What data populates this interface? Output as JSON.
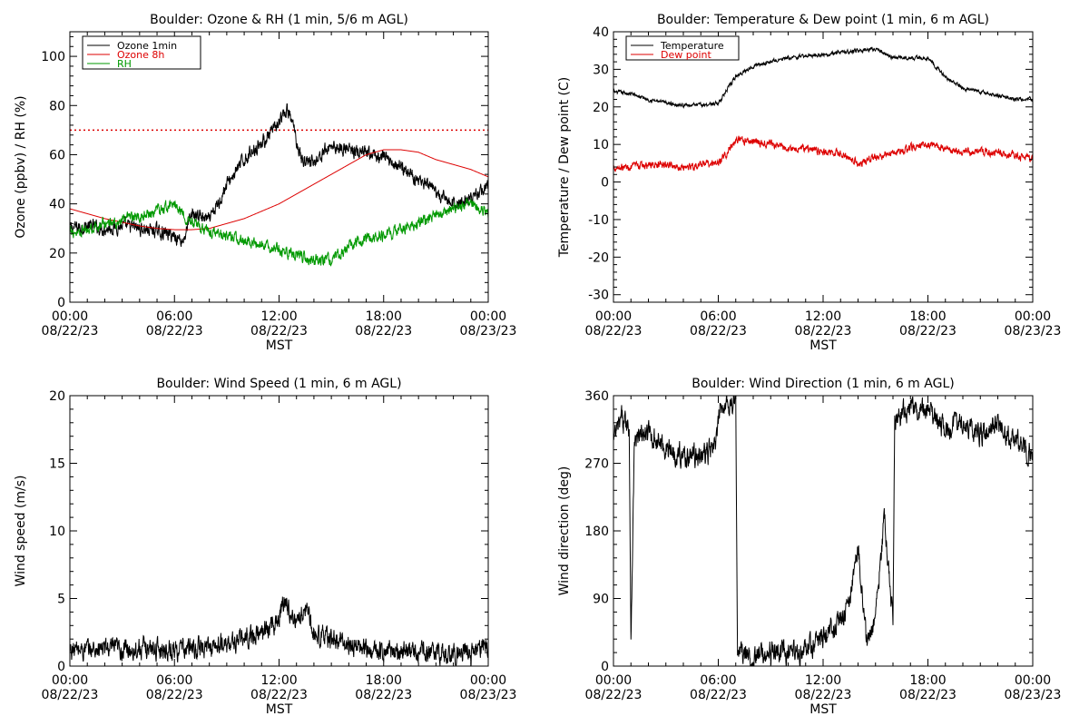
{
  "chart_data": [
    {
      "type": "line",
      "title": "Boulder: Ozone & RH (1 min, 5/6 m AGL)",
      "ylabel": "Ozone (ppbv) / RH (%)",
      "xlabel": "MST",
      "xlim": [
        0,
        24
      ],
      "ylim": [
        0,
        110
      ],
      "yticks": [
        0,
        20,
        40,
        60,
        80,
        100
      ],
      "xticks": [
        {
          "hour": 0,
          "time": "00:00",
          "date": "08/22/23"
        },
        {
          "hour": 6,
          "time": "06:00",
          "date": "08/22/23"
        },
        {
          "hour": 12,
          "time": "12:00",
          "date": "08/22/23"
        },
        {
          "hour": 18,
          "time": "18:00",
          "date": "08/22/23"
        },
        {
          "hour": 24,
          "time": "00:00",
          "date": "08/23/23"
        }
      ],
      "reference_line": {
        "y": 70,
        "color": "#dd0000",
        "style": "dotted"
      },
      "legend_position": "top-left",
      "series": [
        {
          "name": "Ozone 1min",
          "color": "#000000",
          "noise": 2.2,
          "x": [
            0,
            1,
            2,
            3,
            4,
            5,
            6,
            6.5,
            7,
            7.5,
            8,
            8.5,
            9,
            9.5,
            10,
            10.5,
            11,
            11.5,
            12,
            12.5,
            12.8,
            13,
            13.3,
            14,
            15,
            16,
            17,
            18,
            19,
            20,
            21,
            22,
            23,
            24
          ],
          "y": [
            30,
            31,
            30,
            31,
            30,
            29,
            27,
            25,
            36,
            35,
            33,
            40,
            48,
            53,
            58,
            62,
            65,
            68,
            73,
            78,
            72,
            66,
            58,
            57,
            64,
            62,
            60,
            59,
            55,
            50,
            44,
            40,
            42,
            48
          ]
        },
        {
          "name": "Ozone 8h",
          "color": "#dd0000",
          "noise": 0,
          "x": [
            0,
            1,
            2,
            3,
            4,
            5,
            6,
            7,
            8,
            9,
            10,
            11,
            12,
            13,
            14,
            15,
            16,
            17,
            18,
            19,
            20,
            21,
            22,
            23,
            24
          ],
          "y": [
            38,
            36,
            34,
            32.5,
            31,
            30,
            29.5,
            29.5,
            30,
            32,
            34,
            37,
            40,
            44,
            48,
            52,
            56,
            60,
            62,
            62,
            61,
            58,
            56,
            54,
            51
          ]
        },
        {
          "name": "RH",
          "color": "#009900",
          "noise": 1.8,
          "x": [
            0,
            1,
            2,
            3,
            4,
            5,
            6,
            7,
            8,
            9,
            10,
            11,
            12,
            13,
            14,
            15,
            16,
            17,
            18,
            19,
            20,
            21,
            22,
            23,
            24
          ],
          "y": [
            28,
            30,
            32,
            33,
            35,
            37,
            40,
            32,
            29,
            27,
            25,
            23,
            21,
            19,
            17,
            17,
            23,
            26,
            27,
            30,
            32,
            35,
            38,
            40,
            36
          ]
        }
      ]
    },
    {
      "type": "line",
      "title": "Boulder: Temperature & Dew point (1 min, 6 m AGL)",
      "ylabel": "Temperature / Dew point (C)",
      "xlabel": "MST",
      "xlim": [
        0,
        24
      ],
      "ylim": [
        -32,
        40
      ],
      "yticks": [
        -30,
        -20,
        -10,
        0,
        10,
        20,
        30,
        40
      ],
      "xticks": [
        {
          "hour": 0,
          "time": "00:00",
          "date": "08/22/23"
        },
        {
          "hour": 6,
          "time": "06:00",
          "date": "08/22/23"
        },
        {
          "hour": 12,
          "time": "12:00",
          "date": "08/22/23"
        },
        {
          "hour": 18,
          "time": "18:00",
          "date": "08/22/23"
        },
        {
          "hour": 24,
          "time": "00:00",
          "date": "08/23/23"
        }
      ],
      "legend_position": "top-left",
      "series": [
        {
          "name": "Temperature",
          "color": "#000000",
          "noise": 0.4,
          "x": [
            0,
            1,
            2,
            3,
            4,
            5,
            6,
            7,
            8,
            9,
            10,
            11,
            12,
            13,
            14,
            15,
            16,
            17,
            18,
            19,
            20,
            21,
            22,
            23,
            24
          ],
          "y": [
            24,
            23.5,
            22,
            21,
            20.5,
            20.5,
            21,
            28,
            31,
            32,
            33,
            33.5,
            34,
            34.5,
            35,
            35.5,
            33,
            33,
            33,
            28,
            25,
            24,
            23,
            22,
            22
          ]
        },
        {
          "name": "Dew point",
          "color": "#dd0000",
          "noise": 0.8,
          "x": [
            0,
            1,
            2,
            3,
            4,
            5,
            6,
            7,
            8,
            9,
            10,
            11,
            12,
            13,
            14,
            15,
            16,
            17,
            18,
            19,
            20,
            21,
            22,
            23,
            24
          ],
          "y": [
            4,
            4,
            4.5,
            4.5,
            4,
            4.5,
            5,
            11,
            11,
            10,
            9,
            9,
            8,
            7.5,
            5,
            6.5,
            8,
            9,
            10,
            9,
            8,
            8,
            8,
            7,
            6
          ]
        }
      ]
    },
    {
      "type": "line",
      "title": "Boulder: Wind Speed (1 min, 6 m AGL)",
      "ylabel": "Wind speed (m/s)",
      "xlabel": "MST",
      "xlim": [
        0,
        24
      ],
      "ylim": [
        0,
        20
      ],
      "yticks": [
        0,
        5,
        10,
        15,
        20
      ],
      "xticks": [
        {
          "hour": 0,
          "time": "00:00",
          "date": "08/22/23"
        },
        {
          "hour": 6,
          "time": "06:00",
          "date": "08/22/23"
        },
        {
          "hour": 12,
          "time": "12:00",
          "date": "08/22/23"
        },
        {
          "hour": 18,
          "time": "18:00",
          "date": "08/22/23"
        },
        {
          "hour": 24,
          "time": "00:00",
          "date": "08/23/23"
        }
      ],
      "series": [
        {
          "name": "",
          "color": "#000000",
          "noise": 0.6,
          "x": [
            0,
            1,
            2,
            3,
            4,
            5,
            6,
            7,
            8,
            9,
            10,
            11,
            12,
            12.3,
            13,
            13.5,
            14,
            15,
            16,
            17,
            18,
            19,
            20,
            21,
            22,
            23,
            24
          ],
          "y": [
            1.2,
            1.2,
            1.3,
            1.2,
            1.3,
            1.3,
            1.2,
            1.3,
            1.4,
            1.6,
            2,
            2.5,
            3.5,
            5,
            3,
            4.5,
            2.5,
            2,
            1.5,
            1.3,
            1.2,
            1.1,
            1,
            1,
            0.9,
            0.9,
            1.5
          ]
        }
      ]
    },
    {
      "type": "line",
      "title": "Boulder: Wind Direction (1 min, 6 m AGL)",
      "ylabel": "Wind direction (deg)",
      "xlabel": "MST",
      "xlim": [
        0,
        24
      ],
      "ylim": [
        0,
        360
      ],
      "yticks": [
        0,
        90,
        180,
        270,
        360
      ],
      "xticks": [
        {
          "hour": 0,
          "time": "00:00",
          "date": "08/22/23"
        },
        {
          "hour": 6,
          "time": "06:00",
          "date": "08/22/23"
        },
        {
          "hour": 12,
          "time": "12:00",
          "date": "08/22/23"
        },
        {
          "hour": 18,
          "time": "18:00",
          "date": "08/22/23"
        },
        {
          "hour": 24,
          "time": "00:00",
          "date": "08/23/23"
        }
      ],
      "series": [
        {
          "name": "",
          "color": "#000000",
          "noise": 12,
          "x": [
            0,
            0.5,
            0.9,
            1,
            1.2,
            2,
            3,
            4,
            5,
            5.8,
            6.2,
            7,
            7.1,
            8,
            9,
            10,
            11,
            12,
            13,
            13.5,
            14,
            14.5,
            15,
            15.5,
            16,
            16.1,
            17,
            18,
            19,
            20,
            21,
            22,
            23,
            24
          ],
          "y": [
            300,
            330,
            320,
            40,
            300,
            310,
            290,
            280,
            280,
            290,
            350,
            350,
            20,
            10,
            20,
            15,
            20,
            40,
            60,
            80,
            160,
            30,
            60,
            200,
            60,
            330,
            345,
            335,
            315,
            325,
            310,
            320,
            300,
            280
          ]
        }
      ]
    }
  ]
}
